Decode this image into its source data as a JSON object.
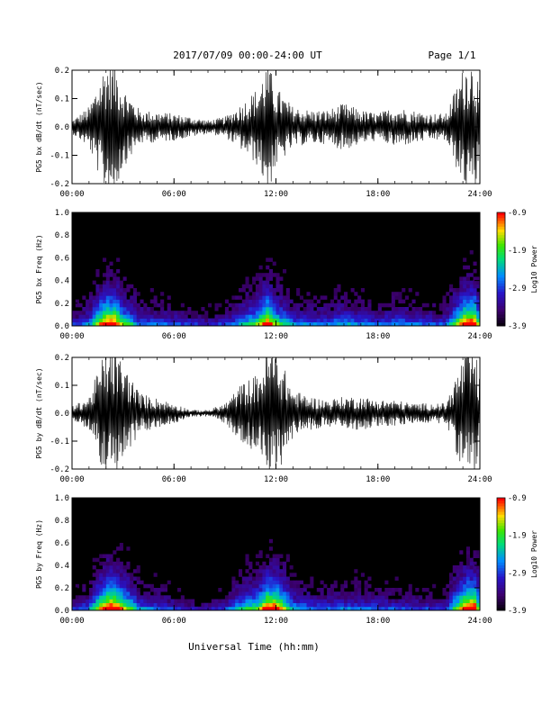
{
  "header": {
    "title": "2017/07/09  00:00-24:00 UT",
    "page": "Page 1/1"
  },
  "xlabel": "Universal Time (hh:mm)",
  "time_ticks": [
    "00:00",
    "06:00",
    "12:00",
    "18:00",
    "24:00"
  ],
  "chart_data": [
    {
      "type": "line",
      "ylabel": "PG5 bx dB/dt (nT/sec)",
      "xlim": [
        0,
        24
      ],
      "ylim": [
        -0.2,
        0.2
      ],
      "yticks": [
        "0.2",
        "0.1",
        "0.0",
        "-0.1",
        "-0.2"
      ],
      "series": [
        {
          "x": [
            0,
            1,
            2,
            2.5,
            3,
            4,
            6,
            8,
            9,
            10,
            11,
            11.5,
            12,
            13,
            14,
            15,
            16,
            17,
            18,
            19,
            20,
            21,
            22,
            23.2,
            23.7,
            24
          ],
          "envelope": [
            0.02,
            0.06,
            0.2,
            0.2,
            0.12,
            0.05,
            0.04,
            0.02,
            0.03,
            0.07,
            0.12,
            0.2,
            0.12,
            0.06,
            0.05,
            0.05,
            0.07,
            0.05,
            0.04,
            0.06,
            0.05,
            0.04,
            0.04,
            0.2,
            0.2,
            0.1
          ]
        }
      ]
    },
    {
      "type": "heatmap",
      "ylabel": "PG5 bx Freq (Hz)",
      "xlim": [
        0,
        24
      ],
      "ylim": [
        0,
        1.0
      ],
      "yticks": [
        "1.0",
        "0.8",
        "0.6",
        "0.4",
        "0.2",
        "0.0"
      ],
      "colorbar": {
        "label": "Log10 Power",
        "range": [
          -3.9,
          -0.9
        ],
        "ticks": [
          "-0.9",
          "-1.9",
          "-2.9",
          "-3.9"
        ]
      }
    },
    {
      "type": "line",
      "ylabel": "PG5 by dB/dt (nT/sec)",
      "xlim": [
        0,
        24
      ],
      "ylim": [
        -0.2,
        0.2
      ],
      "yticks": [
        "0.2",
        "0.1",
        "0.0",
        "-0.1",
        "-0.2"
      ],
      "series": [
        {
          "x": [
            0,
            1,
            2,
            2.5,
            3,
            4,
            6,
            7,
            8,
            9,
            10,
            11,
            11.5,
            12,
            13,
            14,
            15,
            16,
            17,
            18,
            19,
            20,
            21,
            22,
            23.2,
            23.7,
            24
          ],
          "envelope": [
            0.02,
            0.05,
            0.2,
            0.2,
            0.15,
            0.06,
            0.03,
            0.01,
            0.01,
            0.03,
            0.09,
            0.12,
            0.2,
            0.2,
            0.07,
            0.05,
            0.04,
            0.05,
            0.05,
            0.04,
            0.04,
            0.03,
            0.03,
            0.03,
            0.2,
            0.2,
            0.1
          ]
        }
      ]
    },
    {
      "type": "heatmap",
      "ylabel": "PG5 by Freq (Hz)",
      "xlim": [
        0,
        24
      ],
      "ylim": [
        0,
        1.0
      ],
      "yticks": [
        "1.0",
        "0.8",
        "0.6",
        "0.4",
        "0.2",
        "0.0"
      ],
      "colorbar": {
        "label": "Log10 Power",
        "range": [
          -3.9,
          -0.9
        ],
        "ticks": [
          "-0.9",
          "-1.9",
          "-2.9",
          "-3.9"
        ]
      }
    }
  ]
}
